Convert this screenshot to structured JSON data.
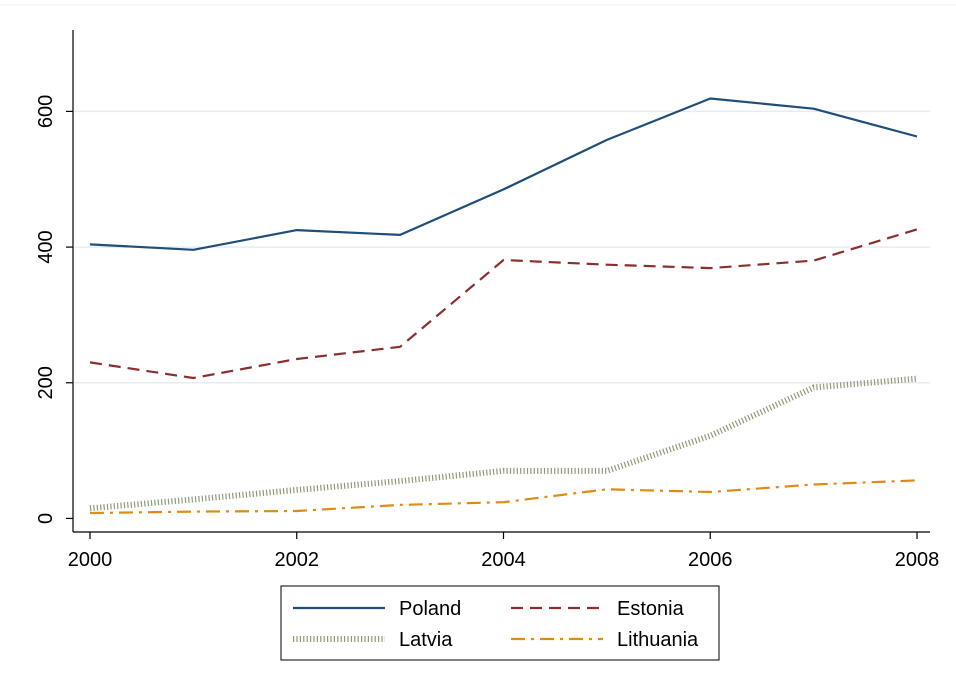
{
  "chart_data": {
    "type": "line",
    "title": "",
    "xlabel": "",
    "ylabel": "",
    "x": [
      2000,
      2001,
      2002,
      2003,
      2004,
      2005,
      2006,
      2007,
      2008
    ],
    "xticks": [
      "2000",
      "2002",
      "2004",
      "2006",
      "2008"
    ],
    "xlim": [
      2000,
      2008
    ],
    "yticks": [
      "0",
      "200",
      "400",
      "600"
    ],
    "ylim": [
      -20,
      720
    ],
    "grid": "horizontal",
    "legend_position": "bottom",
    "series": [
      {
        "name": "Poland",
        "color": "#1f4e79",
        "style": "solid",
        "values": [
          404,
          396,
          425,
          418,
          485,
          558,
          619,
          604,
          563
        ]
      },
      {
        "name": "Estonia",
        "color": "#8b2e2e",
        "style": "dash",
        "values": [
          230,
          207,
          235,
          253,
          381,
          374,
          369,
          380,
          426
        ]
      },
      {
        "name": "Latvia",
        "color": "#8e9a79",
        "style": "dotted-hatch",
        "values": [
          15,
          28,
          42,
          55,
          70,
          70,
          122,
          193,
          206
        ]
      },
      {
        "name": "Lithuania",
        "color": "#e08a12",
        "style": "dash-dot",
        "values": [
          8,
          10,
          11,
          20,
          24,
          43,
          39,
          50,
          56
        ]
      }
    ]
  }
}
